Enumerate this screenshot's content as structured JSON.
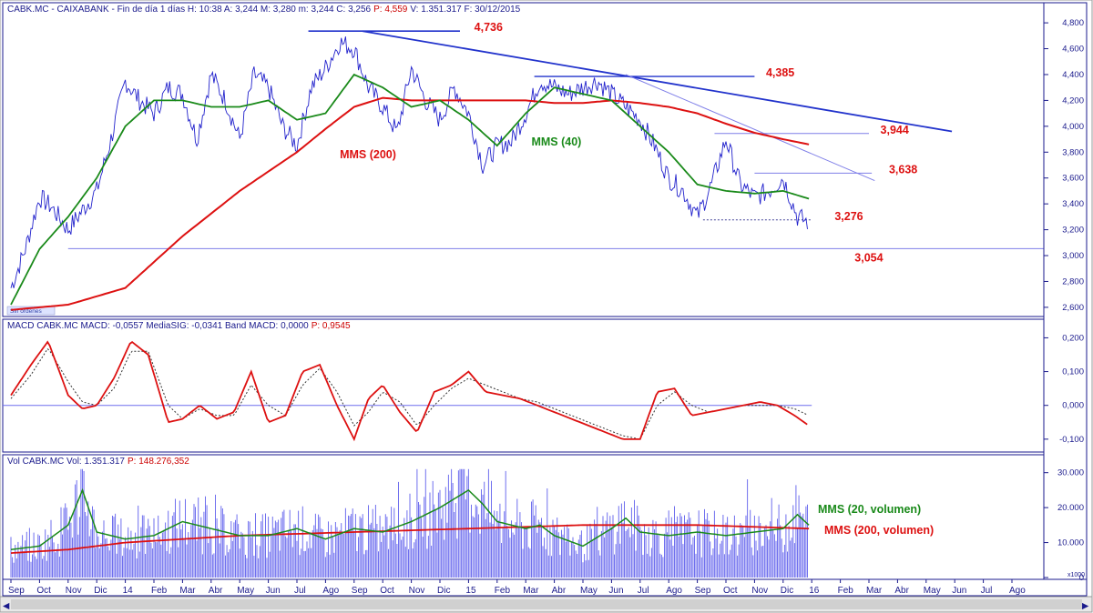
{
  "header": {
    "price": "CABK.MC - CAIXABANK - Fin de día 1 días H: 10:38  A: 3,244  M: 3,280  m: 3,244  C: 3,256",
    "price_red": "P: 4,559",
    "price_tail": "V: 1.351.317  F: 30/12/2015",
    "macd": "MACD  CABK.MC  MACD: -0,0557  MediaSIG: -0,0341  Band  MACD: 0,0000",
    "macd_red": "P: 0,9545",
    "vol": "Vol  CABK.MC  Vol: 1.351.317",
    "vol_red": "P: 148.276,352"
  },
  "badge": "Sin órdenes",
  "vol_unit": "x1000",
  "colors": {
    "price": "#2222cc",
    "mms40": "#1a8a1a",
    "mms200": "#dd1111",
    "trend": "#2233cc",
    "macd": "#dd1111",
    "signal": "#333333",
    "volume": "#6f6fee",
    "label_red": "#dd1111",
    "label_green": "#1a8a1a",
    "grid": "#1a1a8c"
  },
  "chart_data": [
    {
      "type": "line",
      "panel": "price",
      "ylim": [
        2.55,
        4.85
      ],
      "y_ticks": [
        "4,800",
        "4,600",
        "4,400",
        "4,200",
        "4,000",
        "3,800",
        "3,600",
        "3,400",
        "3,200",
        "3,000",
        "2,800",
        "2,600"
      ],
      "y_tick_values": [
        4.8,
        4.6,
        4.4,
        4.2,
        4.0,
        3.8,
        3.6,
        3.4,
        3.2,
        3.0,
        2.8,
        2.6
      ],
      "x_labels": [
        "Sep",
        "Oct",
        "Nov",
        "Dic",
        "14",
        "Feb",
        "Mar",
        "Abr",
        "May",
        "Jun",
        "Jul",
        "Ago",
        "Sep",
        "Oct",
        "Nov",
        "Dic",
        "15",
        "Feb",
        "Mar",
        "Abr",
        "May",
        "Jun",
        "Jul",
        "Ago",
        "Sep",
        "Oct",
        "Nov",
        "Dic",
        "16",
        "Feb",
        "Mar",
        "Abr",
        "May",
        "Jun",
        "Jul",
        "Ago"
      ],
      "series": [
        {
          "key": "price",
          "x": [
            0,
            0.5,
            1,
            1.4,
            2,
            2.5,
            3,
            3.5,
            4,
            4.5,
            5,
            5.5,
            6,
            6.5,
            7,
            7.5,
            8,
            8.5,
            9,
            9.5,
            10,
            10.5,
            11,
            11.5,
            12,
            12.5,
            13,
            13.5,
            14,
            14.5,
            15,
            15.5,
            16,
            16.5,
            17,
            17.5,
            18,
            18.5,
            19,
            19.5,
            20,
            20.5,
            21,
            21.5,
            22,
            22.5,
            23,
            23.5,
            24,
            24.5,
            25,
            25.5,
            26,
            26.5,
            27,
            27.5,
            27.9
          ],
          "values": [
            2.75,
            3.05,
            3.45,
            3.38,
            3.2,
            3.35,
            3.5,
            3.9,
            4.35,
            4.2,
            4.1,
            4.3,
            4.25,
            3.9,
            4.4,
            4.2,
            3.9,
            4.4,
            4.3,
            4.0,
            3.85,
            4.3,
            4.45,
            4.65,
            4.6,
            4.3,
            4.15,
            3.95,
            4.45,
            4.2,
            4.05,
            4.3,
            4.1,
            3.7,
            3.85,
            3.88,
            4.1,
            4.35,
            4.3,
            4.25,
            4.3,
            4.35,
            4.25,
            4.15,
            4.05,
            3.85,
            3.6,
            3.5,
            3.3,
            3.55,
            3.9,
            3.55,
            3.45,
            3.5,
            3.6,
            3.3,
            3.256
          ]
        },
        {
          "key": "mms40",
          "name": "MMS (40)",
          "x": [
            0,
            1,
            2,
            3,
            4,
            5,
            6,
            7,
            8,
            9,
            10,
            11,
            12,
            13,
            14,
            15,
            16,
            17,
            18,
            19,
            20,
            21,
            22,
            23,
            24,
            25,
            26,
            27,
            27.9
          ],
          "values": [
            2.62,
            3.05,
            3.3,
            3.6,
            4.0,
            4.2,
            4.2,
            4.15,
            4.15,
            4.2,
            4.05,
            4.1,
            4.4,
            4.3,
            4.15,
            4.2,
            4.05,
            3.85,
            4.1,
            4.3,
            4.25,
            4.2,
            4.0,
            3.8,
            3.55,
            3.5,
            3.48,
            3.5,
            3.44
          ]
        },
        {
          "key": "mms200",
          "name": "MMS (200)",
          "x": [
            0,
            2,
            4,
            6,
            8,
            10,
            11,
            12,
            13,
            14,
            15,
            16,
            17,
            18,
            19,
            20,
            21,
            22,
            23,
            24,
            25,
            26,
            27,
            27.9
          ],
          "values": [
            2.58,
            2.62,
            2.75,
            3.15,
            3.5,
            3.8,
            3.98,
            4.15,
            4.22,
            4.2,
            4.2,
            4.2,
            4.2,
            4.2,
            4.18,
            4.18,
            4.2,
            4.18,
            4.15,
            4.1,
            4.02,
            3.95,
            3.9,
            3.86
          ]
        }
      ],
      "annotations": [
        {
          "text": "4,736",
          "color": "red",
          "level": 4.736
        },
        {
          "text": "4,385",
          "color": "red",
          "level": 4.385
        },
        {
          "text": "3,944",
          "color": "red",
          "level": 3.944
        },
        {
          "text": "3,638",
          "color": "red",
          "level": 3.638
        },
        {
          "text": "3,276",
          "color": "red",
          "level": 3.276
        },
        {
          "text": "3,054",
          "color": "red",
          "level": 3.054
        },
        {
          "text": "MMS (200)",
          "color": "red"
        },
        {
          "text": "MMS (40)",
          "color": "green"
        }
      ]
    },
    {
      "type": "line",
      "panel": "macd",
      "ylim": [
        -0.13,
        0.22
      ],
      "y_ticks": [
        "0,200",
        "0,100",
        "0,000",
        "-0,100"
      ],
      "y_tick_values": [
        0.2,
        0.1,
        0.0,
        -0.1
      ],
      "series": [
        {
          "key": "macd",
          "name": "MACD",
          "x": [
            0,
            0.7,
            1.3,
            2,
            2.5,
            3,
            3.6,
            4.2,
            4.8,
            5.5,
            6,
            6.6,
            7.2,
            7.8,
            8.4,
            9,
            9.6,
            10.2,
            10.8,
            11.4,
            12,
            12.5,
            13,
            13.6,
            14.2,
            14.8,
            15.4,
            16,
            16.6,
            17.2,
            17.8,
            18.4,
            19,
            19.6,
            20.2,
            20.8,
            21.4,
            22,
            22.6,
            23.2,
            23.8,
            24.4,
            25,
            25.6,
            26.2,
            26.8,
            27.4,
            27.9
          ],
          "values": [
            0.03,
            0.12,
            0.19,
            0.03,
            -0.01,
            0.0,
            0.08,
            0.19,
            0.15,
            -0.05,
            -0.04,
            0.0,
            -0.04,
            -0.02,
            0.1,
            -0.05,
            -0.03,
            0.1,
            0.12,
            0.0,
            -0.1,
            0.02,
            0.06,
            -0.02,
            -0.08,
            0.04,
            0.06,
            0.1,
            0.04,
            0.03,
            0.02,
            0.0,
            -0.02,
            -0.04,
            -0.06,
            -0.08,
            -0.1,
            -0.1,
            0.04,
            0.05,
            -0.03,
            -0.02,
            -0.01,
            0.0,
            0.01,
            0.0,
            -0.03,
            -0.06
          ]
        },
        {
          "key": "signal",
          "name": "MediaSIG",
          "x": [
            0,
            0.7,
            1.3,
            2,
            2.5,
            3,
            3.6,
            4.2,
            4.8,
            5.5,
            6,
            6.6,
            7.2,
            7.8,
            8.4,
            9,
            9.6,
            10.2,
            10.8,
            11.4,
            12,
            12.5,
            13,
            13.6,
            14.2,
            14.8,
            15.4,
            16,
            16.6,
            17.2,
            17.8,
            18.4,
            19,
            19.6,
            20.2,
            20.8,
            21.4,
            22,
            22.6,
            23.2,
            23.8,
            24.4,
            25,
            25.6,
            26.2,
            26.8,
            27.4,
            27.9
          ],
          "values": [
            0.02,
            0.09,
            0.17,
            0.07,
            0.01,
            0.0,
            0.05,
            0.16,
            0.16,
            0.0,
            -0.04,
            -0.01,
            -0.03,
            -0.03,
            0.06,
            0.0,
            -0.03,
            0.06,
            0.11,
            0.04,
            -0.06,
            -0.02,
            0.04,
            0.01,
            -0.06,
            0.0,
            0.05,
            0.08,
            0.06,
            0.04,
            0.02,
            0.01,
            -0.01,
            -0.03,
            -0.05,
            -0.07,
            -0.09,
            -0.1,
            0.0,
            0.04,
            0.0,
            -0.02,
            -0.01,
            0.0,
            0.0,
            0.0,
            -0.01,
            -0.03
          ]
        }
      ]
    },
    {
      "type": "bar",
      "panel": "volume",
      "ylim": [
        0,
        32
      ],
      "y_ticks": [
        "30.000",
        "20.000",
        "10.000",
        "0"
      ],
      "y_tick_values": [
        30,
        20,
        10,
        0
      ],
      "series": [
        {
          "key": "mms20",
          "name": "MMS (20, volumen)",
          "x": [
            0,
            1,
            2,
            2.5,
            3,
            4,
            5,
            6,
            7,
            8,
            9,
            10,
            11,
            12,
            13,
            14,
            15,
            16,
            16.5,
            17,
            18,
            18.5,
            19,
            20,
            21,
            21.5,
            22,
            23,
            24,
            25,
            26,
            27,
            27.5,
            27.9
          ],
          "values": [
            8,
            9,
            15,
            25,
            13,
            11,
            12,
            16,
            14,
            12,
            12,
            14,
            11,
            14,
            13,
            16,
            20,
            25,
            21,
            16,
            14,
            15,
            12,
            9,
            14,
            17,
            13,
            12,
            13,
            12,
            13,
            14,
            18,
            15
          ]
        },
        {
          "key": "mms200v",
          "name": "MMS (200, volumen)",
          "x": [
            0,
            2,
            4,
            6,
            8,
            10,
            12,
            14,
            16,
            18,
            20,
            22,
            24,
            26,
            27.9
          ],
          "values": [
            7,
            8,
            10,
            11,
            12,
            12.5,
            13,
            13.5,
            14,
            14.5,
            15,
            15,
            15,
            14.5,
            14
          ]
        }
      ]
    }
  ]
}
